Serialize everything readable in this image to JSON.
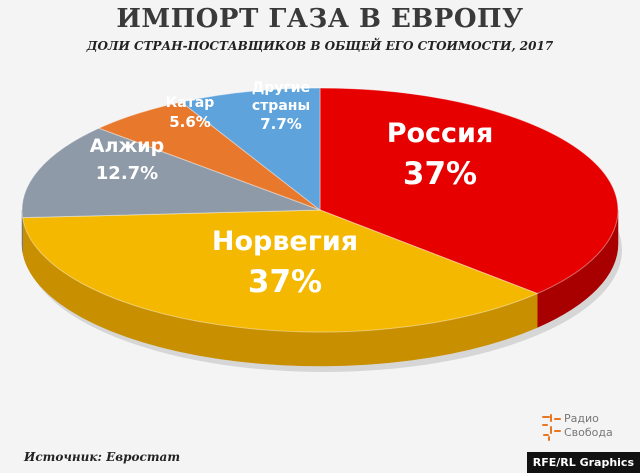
{
  "chart_data": {
    "type": "pie",
    "title": "ИМПОРТ ГАЗА В ЕВРОПУ",
    "subtitle": "ДОЛИ СТРАН-ПОСТАВЩИКОВ В ОБЩЕЙ ЕГО СТОИМОСТИ, 2017",
    "slices": [
      {
        "label": "Россия",
        "value": 37,
        "value_label": "37%",
        "color": "#e60000",
        "side_color": "#a80000"
      },
      {
        "label": "Норвегия",
        "value": 37,
        "value_label": "37%",
        "color": "#f5b800",
        "side_color": "#c88f00"
      },
      {
        "label": "Алжир",
        "value": 12.7,
        "value_label": "12.7%",
        "color": "#8e9aa7",
        "side_color": "#6b7784"
      },
      {
        "label": "Катар",
        "value": 5.6,
        "value_label": "5.6%",
        "color": "#e7782c",
        "side_color": "#b5571a"
      },
      {
        "label": "Другие страны",
        "label_lines": [
          "Другие",
          "страны"
        ],
        "value": 7.7,
        "value_label": "7.7%",
        "color": "#5ea3db",
        "side_color": "#3d7bb0"
      }
    ]
  },
  "source": "Источник: Евростат",
  "logo": {
    "line1": "Радио",
    "line2": "Свобода",
    "color": "#e87722"
  },
  "credit": "RFE/RL Graphics"
}
